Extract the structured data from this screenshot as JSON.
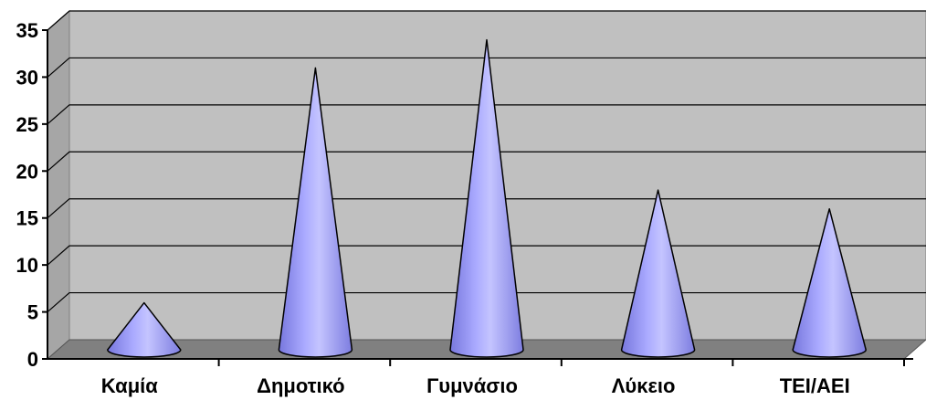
{
  "chart_data": {
    "type": "bar",
    "shape": "cone",
    "categories": [
      "Καμία",
      "Δημοτικό",
      "Γυμνάσιο",
      "Λύκειο",
      "ΤΕΙ/ΑΕΙ"
    ],
    "values": [
      5,
      30,
      33,
      17,
      15
    ],
    "ylim": [
      0,
      35
    ],
    "yticks": [
      "0",
      "5",
      "10",
      "15",
      "20",
      "25",
      "30",
      "35"
    ],
    "title": "",
    "xlabel": "",
    "ylabel": "",
    "grid": true,
    "legend": "none",
    "colors": {
      "wall": "#c0c0c0",
      "floor": "#808080",
      "cone": "#9999ff",
      "cone_light": "#ccccff",
      "cone_dark": "#6666cc"
    }
  }
}
